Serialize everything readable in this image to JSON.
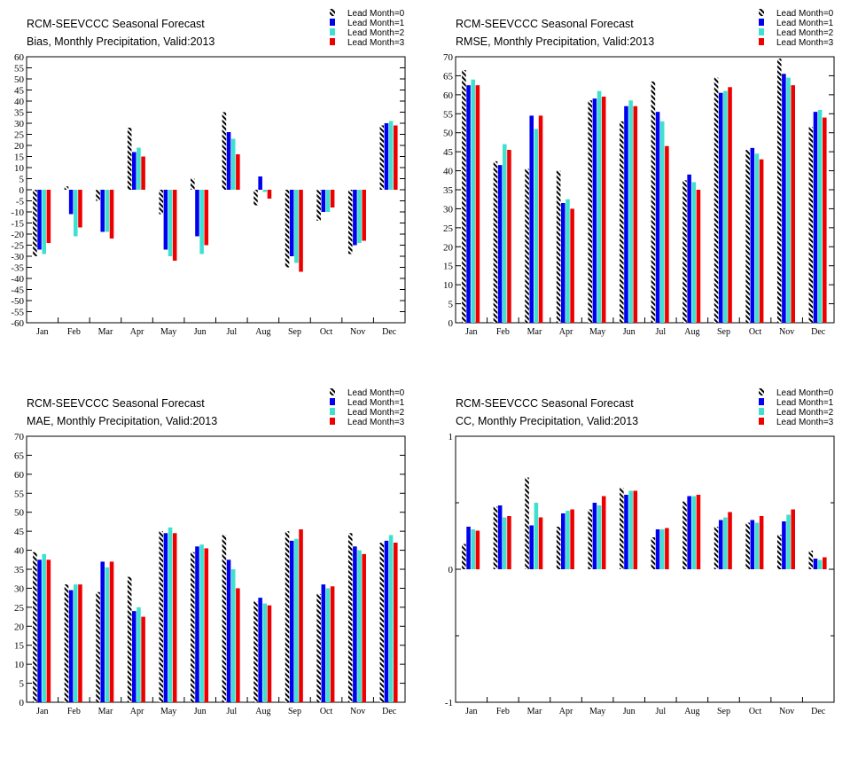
{
  "legend": [
    "Lead Month=0",
    "Lead Month=1",
    "Lead Month=2",
    "Lead Month=3"
  ],
  "colors": {
    "lead0": "hatch-black",
    "lead1": "#0000ee",
    "lead2": "#40e0d0",
    "lead3": "#ee0000"
  },
  "chart_data": [
    {
      "type": "bar",
      "title": "RCM-SEEVCCC Seasonal Forecast",
      "subtitle": "Bias, Monthly Precipitation, Valid:2013",
      "categories": [
        "Jan",
        "Feb",
        "Mar",
        "Apr",
        "May",
        "Jun",
        "Jul",
        "Aug",
        "Sep",
        "Oct",
        "Nov",
        "Dec"
      ],
      "ylim": [
        -60,
        60
      ],
      "yticks": [
        -60,
        -55,
        -50,
        -45,
        -40,
        -35,
        -30,
        -25,
        -20,
        -15,
        -10,
        -5,
        0,
        5,
        10,
        15,
        20,
        25,
        30,
        35,
        40,
        45,
        50,
        55,
        60
      ],
      "series": [
        {
          "name": "Lead Month=0",
          "values": [
            -30,
            1.5,
            -5,
            28,
            -11,
            5,
            35,
            -7,
            -35,
            -14,
            -29,
            29
          ]
        },
        {
          "name": "Lead Month=1",
          "values": [
            -27,
            -11,
            -19,
            17,
            -27,
            -21,
            26,
            6,
            -30,
            -10,
            -25,
            30
          ]
        },
        {
          "name": "Lead Month=2",
          "values": [
            -29,
            -21,
            -19,
            19,
            -30,
            -29,
            23,
            -1,
            -33,
            -10,
            -24,
            31
          ]
        },
        {
          "name": "Lead Month=3",
          "values": [
            -24,
            -17,
            -22,
            15,
            -32,
            -25,
            16,
            -4,
            -37,
            -8,
            -23,
            29
          ]
        }
      ]
    },
    {
      "type": "bar",
      "title": "RCM-SEEVCCC Seasonal Forecast",
      "subtitle": "RMSE, Monthly Precipitation, Valid:2013",
      "categories": [
        "Jan",
        "Feb",
        "Mar",
        "Apr",
        "May",
        "Jun",
        "Jul",
        "Aug",
        "Sep",
        "Oct",
        "Nov",
        "Dec"
      ],
      "ylim": [
        0,
        70
      ],
      "yticks": [
        0,
        5,
        10,
        15,
        20,
        25,
        30,
        35,
        40,
        45,
        50,
        55,
        60,
        65,
        70
      ],
      "series": [
        {
          "name": "Lead Month=0",
          "values": [
            66.5,
            42.5,
            40.5,
            40,
            58.5,
            53,
            63.5,
            37.5,
            64.5,
            45.5,
            69.5,
            51.5
          ]
        },
        {
          "name": "Lead Month=1",
          "values": [
            62.5,
            41.5,
            54.5,
            31.5,
            59,
            57,
            55.5,
            39,
            60.5,
            46,
            65.5,
            55.5
          ]
        },
        {
          "name": "Lead Month=2",
          "values": [
            64,
            47,
            51,
            32.5,
            61,
            58.5,
            53,
            37,
            61,
            44.5,
            64.5,
            56
          ]
        },
        {
          "name": "Lead Month=3",
          "values": [
            62.5,
            45.5,
            54.5,
            30,
            59.5,
            57,
            46.5,
            35,
            62,
            43,
            62.5,
            54
          ]
        }
      ]
    },
    {
      "type": "bar",
      "title": "RCM-SEEVCCC Seasonal Forecast",
      "subtitle": "MAE, Monthly Precipitation, Valid:2013",
      "categories": [
        "Jan",
        "Feb",
        "Mar",
        "Apr",
        "May",
        "Jun",
        "Jul",
        "Aug",
        "Sep",
        "Oct",
        "Nov",
        "Dec"
      ],
      "ylim": [
        0,
        70
      ],
      "yticks": [
        0,
        5,
        10,
        15,
        20,
        25,
        30,
        35,
        40,
        45,
        50,
        55,
        60,
        65,
        70
      ],
      "series": [
        {
          "name": "Lead Month=0",
          "values": [
            39.5,
            31,
            29,
            33,
            45,
            39.5,
            44,
            26.5,
            45,
            28.5,
            44.5,
            42
          ]
        },
        {
          "name": "Lead Month=1",
          "values": [
            37.5,
            29.5,
            37,
            24,
            44.5,
            41,
            37.5,
            27.5,
            42.5,
            31,
            41,
            42.5
          ]
        },
        {
          "name": "Lead Month=2",
          "values": [
            39,
            31,
            35.5,
            25,
            46,
            41.5,
            35,
            26,
            43,
            30,
            40,
            44
          ]
        },
        {
          "name": "Lead Month=3",
          "values": [
            37.5,
            31,
            37,
            22.5,
            44.5,
            40.5,
            30,
            25.5,
            45.5,
            30.5,
            39,
            42
          ]
        }
      ]
    },
    {
      "type": "bar",
      "title": "RCM-SEEVCCC Seasonal Forecast",
      "subtitle": "CC, Monthly Precipitation, Valid:2013",
      "categories": [
        "Jan",
        "Feb",
        "Mar",
        "Apr",
        "May",
        "Jun",
        "Jul",
        "Aug",
        "Sep",
        "Oct",
        "Nov",
        "Dec"
      ],
      "ylim": [
        -1,
        1
      ],
      "yticks": [
        -1,
        0,
        1
      ],
      "series": [
        {
          "name": "Lead Month=0",
          "values": [
            0.19,
            0.47,
            0.69,
            0.32,
            0.45,
            0.61,
            0.24,
            0.51,
            0.32,
            0.35,
            0.26,
            0.14
          ]
        },
        {
          "name": "Lead Month=1",
          "values": [
            0.32,
            0.48,
            0.33,
            0.42,
            0.5,
            0.56,
            0.3,
            0.55,
            0.37,
            0.37,
            0.36,
            0.08
          ]
        },
        {
          "name": "Lead Month=2",
          "values": [
            0.3,
            0.39,
            0.5,
            0.44,
            0.48,
            0.59,
            0.3,
            0.55,
            0.39,
            0.35,
            0.41,
            0.07
          ]
        },
        {
          "name": "Lead Month=3",
          "values": [
            0.29,
            0.4,
            0.39,
            0.45,
            0.55,
            0.59,
            0.31,
            0.56,
            0.43,
            0.4,
            0.45,
            0.09
          ]
        }
      ]
    }
  ]
}
